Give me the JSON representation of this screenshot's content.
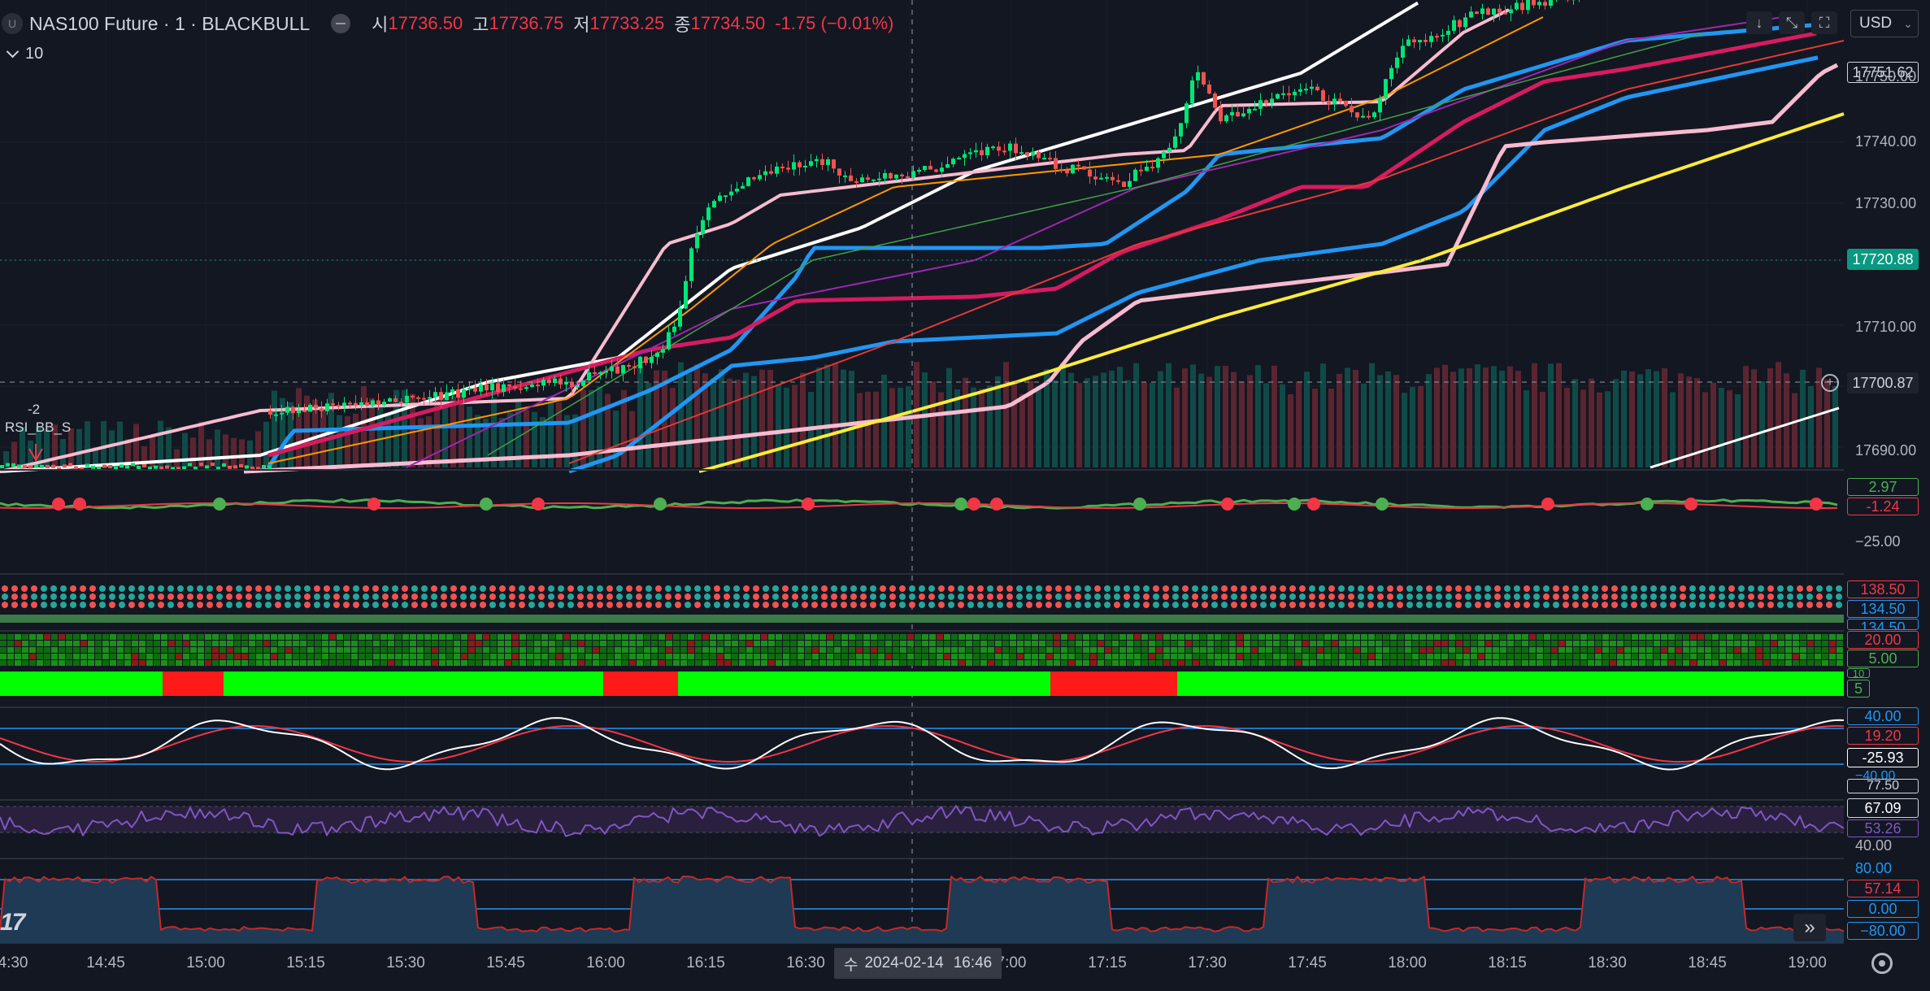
{
  "header": {
    "logo": "U",
    "symbol_title": "NAS100 Future · 1 · BLACKBULL",
    "open_label": "시",
    "open_value": "17736.50",
    "high_label": "고",
    "high_value": "17736.75",
    "low_label": "저",
    "low_value": "17733.25",
    "close_label": "종",
    "close_value": "17734.50",
    "change": "-1.75 (−0.01%)"
  },
  "indicator_row": {
    "count": "10"
  },
  "currency": {
    "label": "USD"
  },
  "price_axis": {
    "ticks": [
      "17750.00",
      "17740.00",
      "17730.00",
      "17710.00",
      "17690.00"
    ],
    "labels": {
      "top_price": "17751.62",
      "current_price": "17720.88",
      "crosshair_price": "17700.87"
    }
  },
  "signal_label": {
    "value": "-2",
    "name": "RSI_BB_S"
  },
  "panes": {
    "osc1": {
      "v1": "2.97",
      "v2": "-1.24",
      "v3": "−25.00"
    },
    "dots": {
      "v1": "138.50",
      "v2": "134.50",
      "v3": "134.50"
    },
    "grid": {
      "v1": "20.00",
      "v2": "5.00",
      "v3": "10",
      "v4": "5"
    },
    "stoch": {
      "v1": "40.00",
      "v2": "19.20",
      "v3": "-25.93",
      "v4": "−40.00"
    },
    "rsi": {
      "v1": "77.50",
      "v2": "67.09",
      "v3": "53.26",
      "v4": "40.00"
    },
    "wr": {
      "v1": "80.00",
      "v2": "57.14",
      "v3": "0.00",
      "v4": "−80.00"
    }
  },
  "time_axis": {
    "ticks": [
      "4:30",
      "14:45",
      "15:00",
      "15:15",
      "15:30",
      "15:45",
      "16:00",
      "16:15",
      "16:30",
      "7:00",
      "17:15",
      "17:30",
      "17:45",
      "18:00",
      "18:15",
      "18:30",
      "18:45",
      "19:00"
    ],
    "crosshair": {
      "weekday": "수",
      "date": "2024-02-14",
      "time": "16:46"
    }
  },
  "icons": [
    "download-icon",
    "collapse-icon",
    "fullscreen-icon",
    "forward-icon",
    "settings-icon",
    "add-alert-icon",
    "tradingview-logo"
  ],
  "colors": {
    "background": "#131722",
    "bull": "#089981",
    "bear": "#f23645",
    "current_price_bg": "#089981",
    "accent_blue": "#2196f3"
  }
}
